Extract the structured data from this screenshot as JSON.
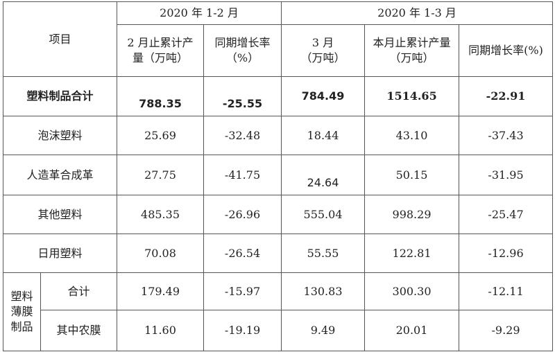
{
  "header": {
    "item_label": "项目",
    "group1_title": "2020 年 1-2 月",
    "group2_title": "2020 年 1-3 月",
    "col1_line1": "2 月止累计产",
    "col1_line2": "量（万吨）",
    "col2_line1": "同期增长率",
    "col2_line2": "（%）",
    "col3_line1": "3 月",
    "col3_line2": "（万吨）",
    "col4_line1": "本月止累计产量",
    "col4_line2": "（万吨）",
    "col5": "同期增长率(%)"
  },
  "rows": [
    {
      "name": "塑料制品合计",
      "v1": "788.35",
      "v2": "-25.55",
      "v3": "784.49",
      "v4": "1514.65",
      "v5": "-22.91"
    },
    {
      "name": "泡沫塑料",
      "v1": "25.69",
      "v2": "-32.48",
      "v3": "18.44",
      "v4": "43.10",
      "v5": "-37.43"
    },
    {
      "name": "人造革合成革",
      "v1": "27.75",
      "v2": "-41.75",
      "v3": "24.64",
      "v4": "50.15",
      "v5": "-31.95"
    },
    {
      "name": "其他塑料",
      "v1": "485.35",
      "v2": "-26.96",
      "v3": "555.04",
      "v4": "998.29",
      "v5": "-25.47"
    },
    {
      "name": "日用塑料",
      "v1": "70.08",
      "v2": "-26.54",
      "v3": "55.55",
      "v4": "122.81",
      "v5": "-12.96"
    }
  ],
  "film_group": {
    "label_line1": "塑料",
    "label_line2": "薄膜",
    "label_line3": "制品",
    "rows": [
      {
        "name": "合计",
        "v1": "179.49",
        "v2": "-15.97",
        "v3": "130.83",
        "v4": "300.30",
        "v5": "-12.11"
      },
      {
        "name": "其中农膜",
        "v1": "11.60",
        "v2": "-19.19",
        "v3": "9.49",
        "v4": "20.01",
        "v5": "-9.29"
      }
    ]
  }
}
